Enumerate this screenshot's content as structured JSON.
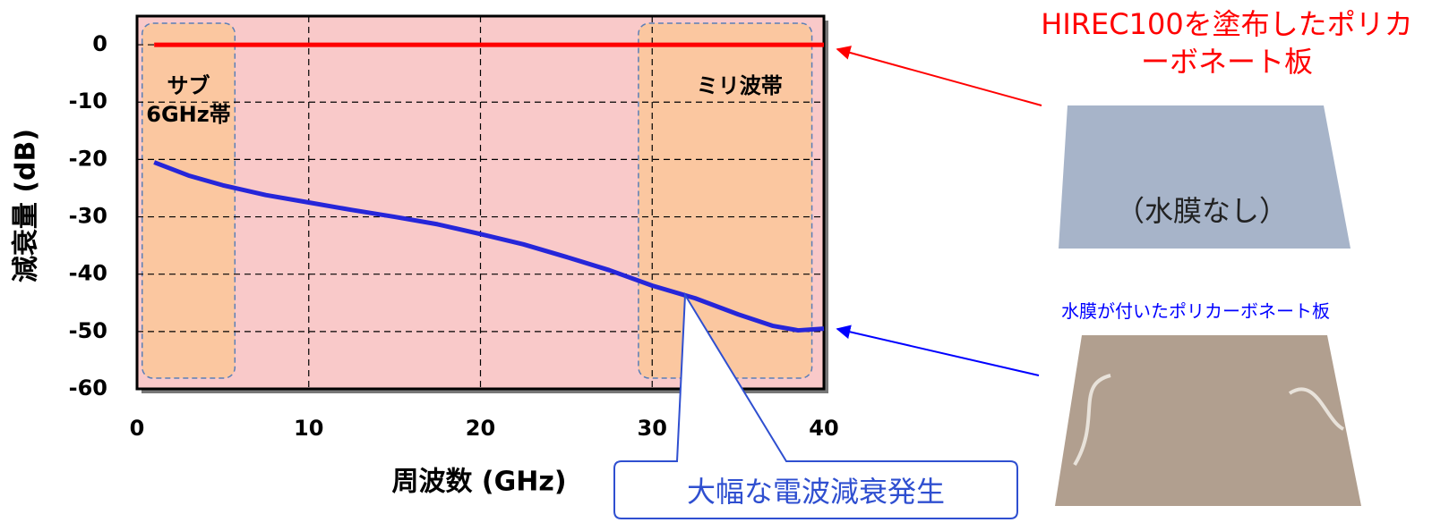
{
  "chart_data": {
    "type": "line",
    "xlabel": "周波数 (GHz)",
    "ylabel": "減衰量 (dB)",
    "x": [
      1,
      3,
      5,
      7.5,
      10,
      12.5,
      15,
      17.5,
      20,
      22.5,
      25,
      27.5,
      30,
      32.5,
      35,
      37,
      38.5,
      40
    ],
    "series": [
      {
        "name": "HIREC100を塗布したポリカーボネート板",
        "color": "#ff0000",
        "values": [
          0,
          0,
          0,
          0,
          0,
          0,
          0,
          0,
          0,
          0,
          0,
          0,
          0,
          0,
          0,
          0,
          0,
          0
        ]
      },
      {
        "name": "水膜が付いたポリカーボネート板",
        "color": "#2626d9",
        "values": [
          -20.5,
          -22.8,
          -24.5,
          -26.2,
          -27.5,
          -28.8,
          -30,
          -31.3,
          -33,
          -34.8,
          -37,
          -39.3,
          -42,
          -44.2,
          -47,
          -49,
          -49.8,
          -49.5
        ]
      }
    ],
    "xlim": [
      0,
      40
    ],
    "xticks": [
      0,
      10,
      20,
      30,
      40
    ],
    "ylim": [
      -60,
      5
    ],
    "yticks": [
      0,
      -10,
      -20,
      -30,
      -40,
      -50,
      -60
    ],
    "grid": true,
    "regions": [
      {
        "label": "サブ\n6GHz帯",
        "range": [
          0.3,
          5.7
        ]
      },
      {
        "label": "ミリ波帯",
        "range": [
          29.2,
          39.3
        ]
      }
    ],
    "photo_label": "（水膜なし）",
    "callout": "大幅な電波減衰発生"
  }
}
